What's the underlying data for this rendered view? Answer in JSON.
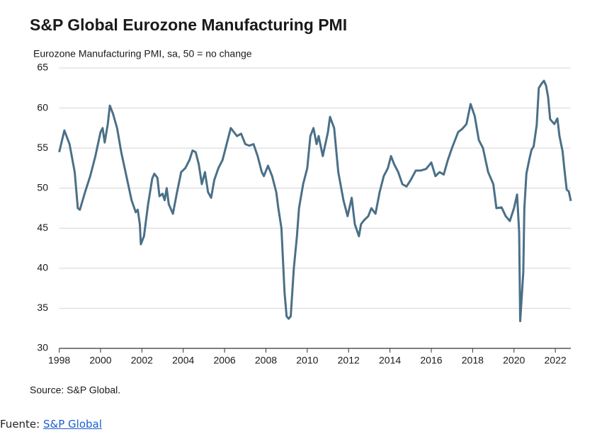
{
  "chart_data": {
    "type": "line",
    "title": "S&P Global Eurozone Manufacturing PMI",
    "subtitle": "Eurozone Manufacturing PMI, sa, 50 = no change",
    "source": "Source: S&P Global.",
    "x": [
      1998.0,
      1998.25,
      1998.5,
      1998.75,
      1998.9,
      1999.0,
      1999.25,
      1999.5,
      1999.75,
      2000.0,
      2000.1,
      2000.2,
      2000.35,
      2000.45,
      2000.6,
      2000.8,
      2001.0,
      2001.25,
      2001.5,
      2001.7,
      2001.8,
      2001.9,
      2001.95,
      2002.1,
      2002.3,
      2002.5,
      2002.6,
      2002.75,
      2002.85,
      2003.0,
      2003.1,
      2003.2,
      2003.3,
      2003.5,
      2003.7,
      2003.9,
      2004.1,
      2004.3,
      2004.45,
      2004.6,
      2004.75,
      2004.9,
      2005.05,
      2005.2,
      2005.35,
      2005.5,
      2005.7,
      2005.9,
      2006.1,
      2006.3,
      2006.45,
      2006.6,
      2006.8,
      2007.0,
      2007.2,
      2007.4,
      2007.6,
      2007.8,
      2007.9,
      2008.1,
      2008.3,
      2008.5,
      2008.6,
      2008.75,
      2008.9,
      2009.0,
      2009.1,
      2009.2,
      2009.35,
      2009.5,
      2009.6,
      2009.8,
      2010.0,
      2010.15,
      2010.3,
      2010.45,
      2010.55,
      2010.75,
      2011.0,
      2011.1,
      2011.3,
      2011.5,
      2011.75,
      2011.95,
      2012.15,
      2012.3,
      2012.5,
      2012.6,
      2012.75,
      2012.95,
      2013.1,
      2013.3,
      2013.5,
      2013.7,
      2013.9,
      2014.05,
      2014.2,
      2014.4,
      2014.6,
      2014.8,
      2015.0,
      2015.25,
      2015.5,
      2015.75,
      2016.0,
      2016.2,
      2016.4,
      2016.6,
      2016.8,
      2017.0,
      2017.3,
      2017.5,
      2017.7,
      2017.9,
      2018.1,
      2018.3,
      2018.5,
      2018.75,
      2019.0,
      2019.15,
      2019.4,
      2019.6,
      2019.8,
      2020.0,
      2020.15,
      2020.25,
      2020.3,
      2020.45,
      2020.5,
      2020.6,
      2020.75,
      2020.85,
      2020.95,
      2021.1,
      2021.2,
      2021.35,
      2021.45,
      2021.55,
      2021.65,
      2021.75,
      2021.85,
      2021.95,
      2022.1,
      2022.2,
      2022.35,
      2022.45,
      2022.55,
      2022.65,
      2022.75
    ],
    "series": [
      {
        "color": "#4a7087",
        "values": [
          54.5,
          57.2,
          55.5,
          52,
          47.5,
          47.3,
          49.5,
          51.5,
          54,
          57,
          57.5,
          55.7,
          58,
          60.3,
          59.3,
          57.5,
          54.5,
          51.5,
          48.5,
          47,
          47.3,
          45.5,
          43,
          44,
          48,
          51.2,
          51.8,
          51.3,
          49,
          49.3,
          48.5,
          50,
          48,
          46.8,
          49.5,
          52,
          52.5,
          53.5,
          54.7,
          54.5,
          53,
          50.5,
          52,
          49.5,
          48.8,
          51,
          52.5,
          53.5,
          55.5,
          57.5,
          57,
          56.5,
          56.8,
          55.5,
          55.3,
          55.5,
          54,
          52,
          51.5,
          52.8,
          51.5,
          49.5,
          47.5,
          45,
          37,
          34,
          33.7,
          34,
          40,
          44,
          47.5,
          50.5,
          52.5,
          56.5,
          57.5,
          55.5,
          56.5,
          54,
          57,
          58.9,
          57.5,
          52,
          48.5,
          46.5,
          48.8,
          45.5,
          44,
          45.5,
          46,
          46.5,
          47.5,
          46.8,
          49.5,
          51.5,
          52.5,
          54,
          53,
          52,
          50.5,
          50.2,
          51,
          52.2,
          52.2,
          52.4,
          53.2,
          51.5,
          52,
          51.7,
          53.5,
          55,
          57,
          57.4,
          58,
          60.5,
          59,
          56,
          55,
          52,
          50.5,
          47.5,
          47.6,
          46.5,
          45.9,
          47.5,
          49.2,
          44.5,
          33.4,
          39.5,
          47.4,
          51.8,
          53.7,
          54.8,
          55.2,
          57.9,
          62.5,
          63.1,
          63.4,
          62.8,
          61.4,
          58.6,
          58.3,
          58.0,
          58.7,
          56.5,
          54.6,
          52.1,
          49.8,
          49.6,
          48.4
        ]
      }
    ],
    "xlim": [
      1998,
      2022.75
    ],
    "xticks": [
      1998,
      2000,
      2002,
      2004,
      2006,
      2008,
      2010,
      2012,
      2014,
      2016,
      2018,
      2020,
      2022
    ],
    "ylim": [
      30,
      65
    ],
    "yticks": [
      30,
      35,
      40,
      45,
      50,
      55,
      60,
      65
    ],
    "grid": true
  },
  "footer": {
    "label": "Fuente:",
    "link": "S&P Global"
  }
}
